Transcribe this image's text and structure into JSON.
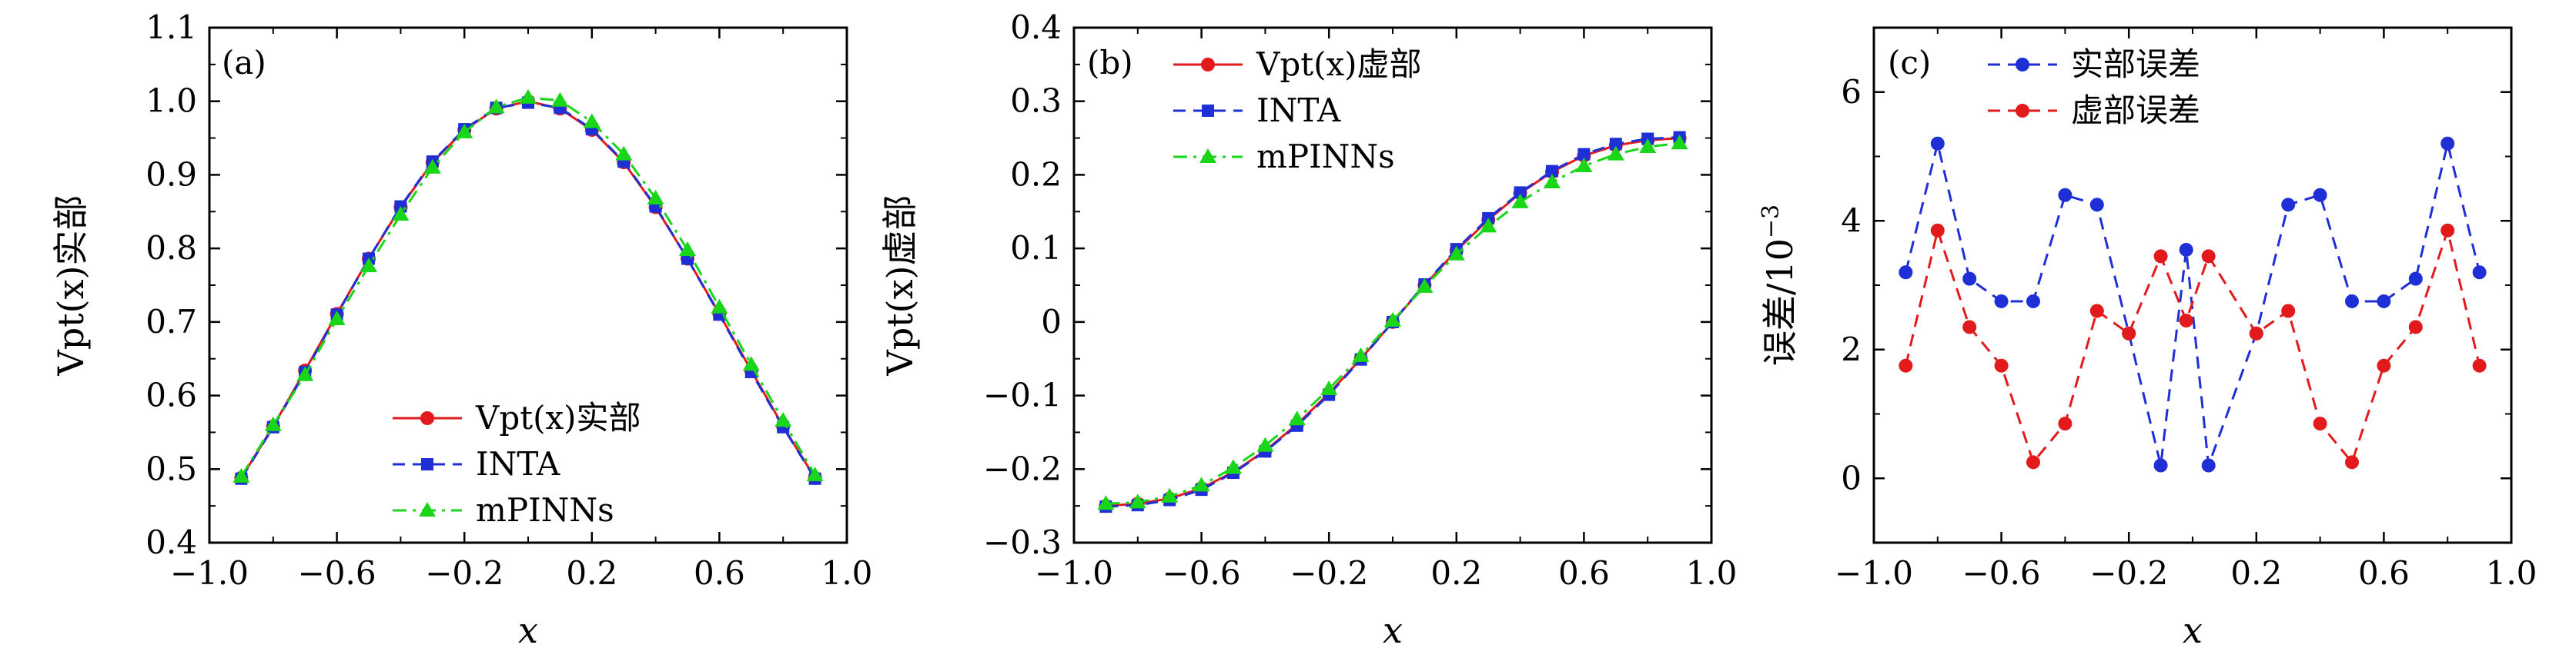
{
  "chart_data": [
    {
      "type": "line",
      "panel_label": "(a)",
      "xlabel": "x",
      "ylabel": "Vpt(x)实部",
      "xlim": [
        -1.0,
        1.0
      ],
      "ylim": [
        0.4,
        1.1
      ],
      "xticks": [
        -1.0,
        -0.6,
        -0.2,
        0.2,
        0.6,
        1.0
      ],
      "xtick_labels": [
        "−1.0",
        "−0.6",
        "−0.2",
        "0.2",
        "0.6",
        "1.0"
      ],
      "yticks": [
        0.4,
        0.5,
        0.6,
        0.7,
        0.8,
        0.9,
        1.0,
        1.1
      ],
      "ytick_labels": [
        "0.4",
        "0.5",
        "0.6",
        "0.7",
        "0.8",
        "0.9",
        "1.0",
        "1.1"
      ],
      "legend_position": "lower-center",
      "x": [
        -0.9,
        -0.8,
        -0.7,
        -0.6,
        -0.5,
        -0.4,
        -0.3,
        -0.2,
        -0.1,
        0.0,
        0.1,
        0.2,
        0.3,
        0.4,
        0.5,
        0.6,
        0.7,
        0.8,
        0.9
      ],
      "series": [
        {
          "name": "Vpt(x)实部",
          "color": "#e31a1c",
          "marker": "circle",
          "dash": "solid",
          "values": [
            0.488,
            0.558,
            0.634,
            0.711,
            0.786,
            0.856,
            0.917,
            0.961,
            0.99,
            1.0,
            0.99,
            0.961,
            0.917,
            0.856,
            0.786,
            0.711,
            0.634,
            0.558,
            0.488
          ]
        },
        {
          "name": "INTA",
          "color": "#1f2fd6",
          "marker": "square",
          "dash": "dashed",
          "values": [
            0.487,
            0.557,
            0.632,
            0.71,
            0.786,
            0.857,
            0.918,
            0.962,
            0.991,
            0.998,
            0.991,
            0.962,
            0.918,
            0.857,
            0.786,
            0.71,
            0.632,
            0.557,
            0.487
          ]
        },
        {
          "name": "mPINNs",
          "color": "#19d619",
          "marker": "triangle",
          "dash": "dashdot",
          "values": [
            0.49,
            0.56,
            0.628,
            0.704,
            0.776,
            0.846,
            0.91,
            0.958,
            0.992,
            1.005,
            1.001,
            0.972,
            0.928,
            0.868,
            0.798,
            0.72,
            0.642,
            0.566,
            0.492
          ]
        }
      ]
    },
    {
      "type": "line",
      "panel_label": "(b)",
      "xlabel": "x",
      "ylabel": "Vpt(x)虚部",
      "xlim": [
        -1.0,
        1.0
      ],
      "ylim": [
        -0.3,
        0.4
      ],
      "xticks": [
        -1.0,
        -0.6,
        -0.2,
        0.2,
        0.6,
        1.0
      ],
      "xtick_labels": [
        "−1.0",
        "−0.6",
        "−0.2",
        "0.2",
        "0.6",
        "1.0"
      ],
      "yticks": [
        -0.3,
        -0.2,
        -0.1,
        0.0,
        0.1,
        0.2,
        0.3,
        0.4
      ],
      "ytick_labels": [
        "−0.3",
        "−0.2",
        "−0.1",
        "0",
        "0.1",
        "0.2",
        "0.3",
        "0.4"
      ],
      "legend_position": "top-left",
      "x": [
        -0.9,
        -0.8,
        -0.7,
        -0.6,
        -0.5,
        -0.4,
        -0.3,
        -0.2,
        -0.1,
        0.0,
        0.1,
        0.2,
        0.3,
        0.4,
        0.5,
        0.6,
        0.7,
        0.8,
        0.9
      ],
      "series": [
        {
          "name": "Vpt(x)虚部",
          "color": "#e31a1c",
          "marker": "circle",
          "dash": "solid",
          "values": [
            -0.25,
            -0.247,
            -0.24,
            -0.226,
            -0.204,
            -0.175,
            -0.139,
            -0.097,
            -0.05,
            0.0,
            0.05,
            0.097,
            0.139,
            0.175,
            0.204,
            0.226,
            0.24,
            0.247,
            0.25
          ]
        },
        {
          "name": "INTA",
          "color": "#1f2fd6",
          "marker": "square",
          "dash": "dashed",
          "values": [
            -0.251,
            -0.249,
            -0.242,
            -0.228,
            -0.205,
            -0.176,
            -0.141,
            -0.099,
            -0.051,
            0.0,
            0.051,
            0.099,
            0.141,
            0.176,
            0.205,
            0.228,
            0.242,
            0.249,
            0.251
          ]
        },
        {
          "name": "mPINNs",
          "color": "#19d619",
          "marker": "triangle",
          "dash": "dashdot",
          "values": [
            -0.247,
            -0.245,
            -0.237,
            -0.222,
            -0.198,
            -0.168,
            -0.132,
            -0.091,
            -0.046,
            0.002,
            0.048,
            0.092,
            0.13,
            0.163,
            0.19,
            0.212,
            0.228,
            0.238,
            0.243
          ]
        }
      ]
    },
    {
      "type": "line",
      "panel_label": "(c)",
      "xlabel": "x",
      "ylabel": "误差/10",
      "ylabel_exponent": "−3",
      "xlim": [
        -1.0,
        1.0
      ],
      "ylim": [
        -1.0,
        7.0
      ],
      "xticks": [
        -1.0,
        -0.6,
        -0.2,
        0.2,
        0.6,
        1.0
      ],
      "xtick_labels": [
        "−1.0",
        "−0.6",
        "−0.2",
        "0.2",
        "0.6",
        "1.0"
      ],
      "yticks": [
        0,
        2,
        4,
        6
      ],
      "ytick_labels": [
        "0",
        "2",
        "4",
        "6"
      ],
      "legend_position": "top-left",
      "x": [
        -0.9,
        -0.8,
        -0.7,
        -0.6,
        -0.5,
        -0.4,
        -0.3,
        -0.2,
        -0.1,
        -0.05,
        0.05,
        0.1,
        0.2,
        0.3,
        0.4,
        0.5,
        0.6,
        0.7,
        0.8,
        0.9
      ],
      "series": [
        {
          "name": "实部误差",
          "color": "#1f2fd6",
          "marker": "circle",
          "dash": "dashed",
          "x": [
            -0.9,
            -0.8,
            -0.7,
            -0.6,
            -0.5,
            -0.4,
            -0.3,
            -0.2,
            -0.1,
            -0.02,
            0.05,
            0.2,
            0.3,
            0.4,
            0.5,
            0.6,
            0.7,
            0.8,
            0.9
          ],
          "values": [
            3.2,
            5.2,
            3.1,
            2.75,
            2.75,
            4.4,
            4.25,
            2.25,
            0.2,
            3.55,
            0.2,
            2.25,
            4.25,
            4.4,
            2.75,
            2.75,
            3.1,
            5.2,
            3.2
          ]
        },
        {
          "name": "虚部误差",
          "color": "#e31a1c",
          "marker": "circle",
          "dash": "dashed",
          "x": [
            -0.9,
            -0.8,
            -0.7,
            -0.6,
            -0.5,
            -0.4,
            -0.3,
            -0.2,
            -0.1,
            -0.02,
            0.05,
            0.2,
            0.3,
            0.4,
            0.5,
            0.6,
            0.7,
            0.8,
            0.9
          ],
          "values": [
            1.75,
            3.85,
            2.35,
            1.75,
            0.25,
            0.85,
            2.6,
            2.25,
            3.45,
            2.45,
            3.45,
            2.25,
            2.6,
            0.85,
            0.25,
            1.75,
            2.35,
            3.85,
            1.75
          ]
        }
      ]
    }
  ]
}
